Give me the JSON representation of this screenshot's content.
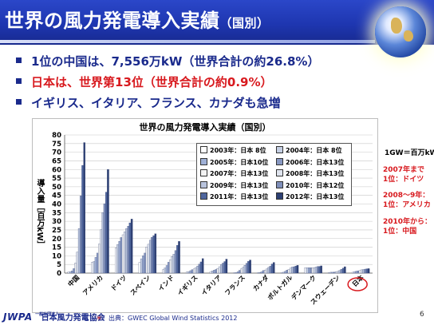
{
  "slide": {
    "title_main": "世界の風力発電導入実績",
    "title_sub": "（国別）",
    "bullets": [
      {
        "text": "1位の中国は、7,556万kW（世界合計の約26.8%）",
        "color": "#1a2a8c"
      },
      {
        "text": "日本は、世界第13位（世界合計の約0.9%）",
        "color": "#d8191e"
      },
      {
        "text": "イギリス、イタリア、フランス、カナダも急増",
        "color": "#1a2a8c"
      }
    ],
    "notes": {
      "unit": "1GW＝百万kW",
      "note1": [
        "2007年まで",
        "1位：ドイツ"
      ],
      "note2": [
        "2008～9年：",
        "1位：アメリカ"
      ],
      "note3": [
        "2010年から：",
        "1位：中国"
      ]
    },
    "footer": {
      "logo_abbr": "JWPA",
      "logo_small": "一般社団法人",
      "logo_name": "日本風力発電協会",
      "source_star": "＊",
      "source": "：出典：GWEC Global Wind Statistics 2012",
      "page": "6"
    }
  },
  "chart_data": {
    "type": "bar",
    "title": "世界の風力発電導入実績（国別）",
    "ylabel": "導入量［百万kW］",
    "ylim": [
      0,
      80
    ],
    "yticks": [
      0,
      5,
      10,
      15,
      20,
      25,
      30,
      35,
      40,
      45,
      50,
      55,
      60,
      65,
      70,
      75,
      80
    ],
    "grid": true,
    "legend_position": "top-right",
    "categories": [
      "中国",
      "アメリカ",
      "ドイツ",
      "スペイン",
      "インド",
      "イギリス",
      "イタリア",
      "フランス",
      "カナダ",
      "ポルトガル",
      "デンマーク",
      "スウェーデン",
      "日本"
    ],
    "highlight_category": "日本",
    "highlight_color": "#d8191e",
    "series": [
      {
        "name": "2003年：日本 8位",
        "color": "#ffffff",
        "values": [
          0.6,
          6.4,
          14.6,
          6.2,
          2.1,
          0.7,
          0.9,
          0.2,
          0.3,
          0.3,
          3.1,
          0.4,
          0.5
        ]
      },
      {
        "name": "2004年：日本 8位",
        "color": "#c5cfe3",
        "values": [
          0.8,
          6.7,
          16.6,
          8.3,
          3.0,
          0.9,
          1.3,
          0.4,
          0.4,
          0.5,
          3.1,
          0.5,
          0.9
        ]
      },
      {
        "name": "2005年：日本10位",
        "color": "#9fb0d6",
        "values": [
          1.3,
          9.1,
          18.4,
          10.0,
          4.4,
          1.4,
          1.7,
          0.8,
          0.7,
          1.0,
          3.1,
          0.5,
          1.1
        ]
      },
      {
        "name": "2006年：日本13位",
        "color": "#8898c2",
        "values": [
          2.6,
          11.6,
          20.6,
          11.6,
          6.3,
          2.0,
          2.1,
          1.6,
          1.5,
          1.7,
          3.1,
          0.6,
          1.3
        ]
      },
      {
        "name": "2007年：日本13位",
        "color": "#f4f4f4",
        "values": [
          5.9,
          16.8,
          22.2,
          15.1,
          7.8,
          2.4,
          2.7,
          2.5,
          1.8,
          2.1,
          3.1,
          0.8,
          1.5
        ]
      },
      {
        "name": "2008年：日本13位",
        "color": "#dfe4ee",
        "values": [
          12.2,
          25.2,
          23.9,
          16.7,
          9.6,
          3.2,
          3.7,
          3.4,
          2.4,
          2.9,
          3.2,
          1.0,
          1.9
        ]
      },
      {
        "name": "2009年：日本13位",
        "color": "#b8c3dc",
        "values": [
          25.8,
          35.1,
          25.8,
          19.1,
          10.9,
          4.1,
          4.9,
          4.5,
          3.3,
          3.5,
          3.5,
          1.5,
          2.1
        ]
      },
      {
        "name": "2010年：日本12位",
        "color": "#7f8fba",
        "values": [
          44.7,
          40.2,
          27.2,
          20.7,
          13.1,
          5.2,
          5.8,
          5.7,
          4.0,
          3.7,
          3.8,
          2.2,
          2.3
        ]
      },
      {
        "name": "2011年：日本13位",
        "color": "#4f669e",
        "values": [
          62.4,
          46.9,
          29.1,
          21.7,
          16.1,
          6.5,
          6.7,
          6.8,
          5.3,
          4.1,
          3.9,
          2.9,
          2.5
        ]
      },
      {
        "name": "2012年：日本13位",
        "color": "#2c3f73",
        "values": [
          75.6,
          60.0,
          31.3,
          22.8,
          18.4,
          8.4,
          8.1,
          7.6,
          6.2,
          4.5,
          4.2,
          3.7,
          2.6
        ]
      }
    ]
  }
}
